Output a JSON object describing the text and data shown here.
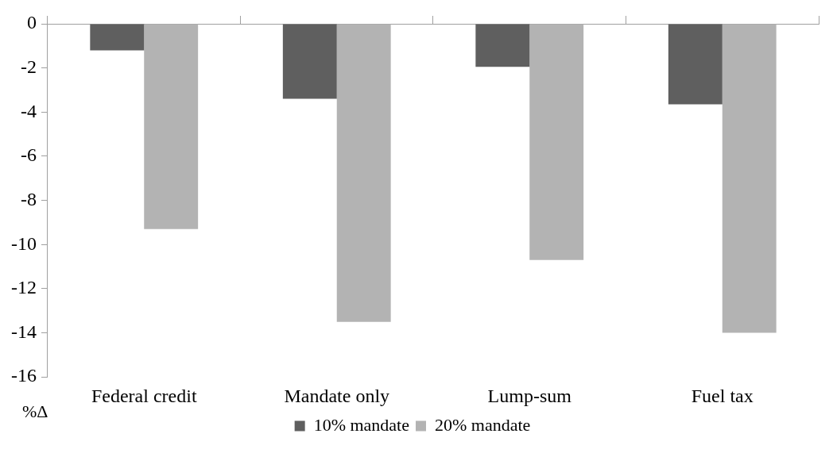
{
  "chart_data": {
    "type": "bar",
    "ylabel": "%Δ",
    "categories": [
      "Federal credit",
      "Mandate only",
      "Lump-sum",
      "Fuel tax"
    ],
    "series": [
      {
        "name": "10% mandate",
        "color": "#5f5f5f",
        "values": [
          -1.2,
          -3.4,
          -1.95,
          -3.65
        ]
      },
      {
        "name": "20% mandate",
        "color": "#b3b3b3",
        "values": [
          -9.3,
          -13.5,
          -10.7,
          -14.0
        ]
      }
    ],
    "ylim": [
      -16,
      0
    ],
    "yticks": [
      0,
      -2,
      -4,
      -6,
      -8,
      -10,
      -12,
      -14,
      -16
    ],
    "grid": false,
    "legend": "bottom"
  }
}
